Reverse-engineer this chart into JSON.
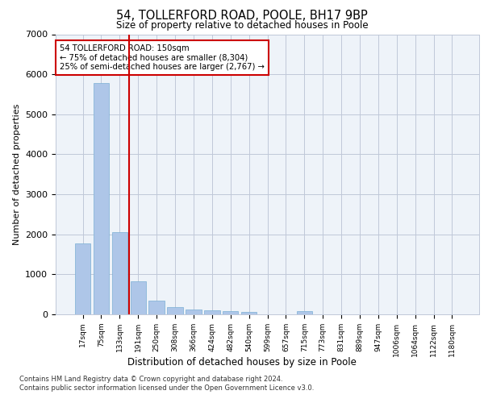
{
  "title1": "54, TOLLERFORD ROAD, POOLE, BH17 9BP",
  "title2": "Size of property relative to detached houses in Poole",
  "xlabel": "Distribution of detached houses by size in Poole",
  "ylabel": "Number of detached properties",
  "categories": [
    "17sqm",
    "75sqm",
    "133sqm",
    "191sqm",
    "250sqm",
    "308sqm",
    "366sqm",
    "424sqm",
    "482sqm",
    "540sqm",
    "599sqm",
    "657sqm",
    "715sqm",
    "773sqm",
    "831sqm",
    "889sqm",
    "947sqm",
    "1006sqm",
    "1064sqm",
    "1122sqm",
    "1180sqm"
  ],
  "values": [
    1780,
    5780,
    2060,
    820,
    340,
    185,
    120,
    105,
    90,
    55,
    0,
    0,
    75,
    0,
    0,
    0,
    0,
    0,
    0,
    0,
    0
  ],
  "bar_color": "#aec6e8",
  "bar_edgecolor": "#7bafd4",
  "annotation_text": "54 TOLLERFORD ROAD: 150sqm\n← 75% of detached houses are smaller (8,304)\n25% of semi-detached houses are larger (2,767) →",
  "annotation_box_color": "#ffffff",
  "annotation_box_edgecolor": "#cc0000",
  "vline_color": "#cc0000",
  "vline_x": 2.5,
  "footer1": "Contains HM Land Registry data © Crown copyright and database right 2024.",
  "footer2": "Contains public sector information licensed under the Open Government Licence v3.0.",
  "plot_bg_color": "#eef3f9",
  "ylim": [
    0,
    7000
  ],
  "yticks": [
    0,
    1000,
    2000,
    3000,
    4000,
    5000,
    6000,
    7000
  ]
}
